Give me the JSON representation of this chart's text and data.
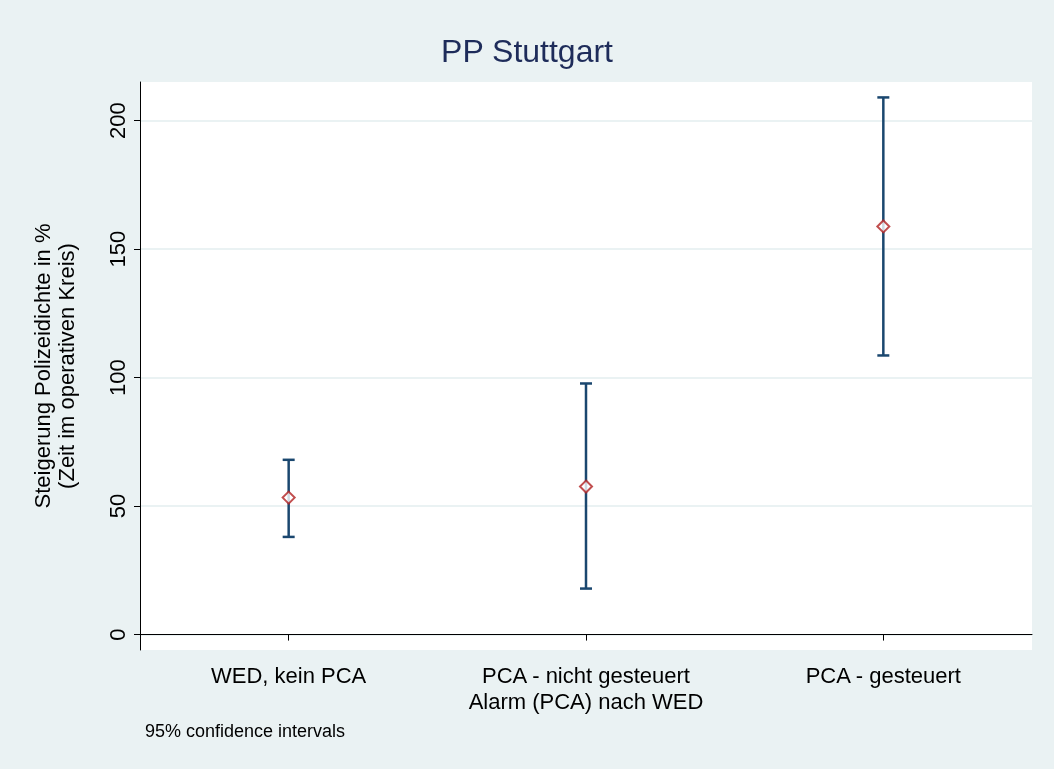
{
  "chart_data": {
    "type": "scatter",
    "title": "PP Stuttgart",
    "xlabel": "Alarm (PCA) nach WED",
    "ylabel": "Steigerung Polizeidichte in %\n(Zeit im operativen Kreis)",
    "annotations": [
      "95% confidence intervals"
    ],
    "categories": [
      "WED, kein PCA",
      "PCA - nicht gesteuert",
      "PCA - gesteuert"
    ],
    "series": [
      {
        "color": "#b22222",
        "values": [
          53.3,
          57.6,
          158.8
        ],
        "errors": [
          [
            38,
            68
          ],
          [
            17.9,
            97.7
          ],
          [
            108.6,
            209
          ]
        ]
      }
    ],
    "ylim": [
      -6,
      215
    ],
    "yticks": [
      0,
      50,
      100,
      150,
      200
    ],
    "grid": "y",
    "marker": "diamond"
  }
}
